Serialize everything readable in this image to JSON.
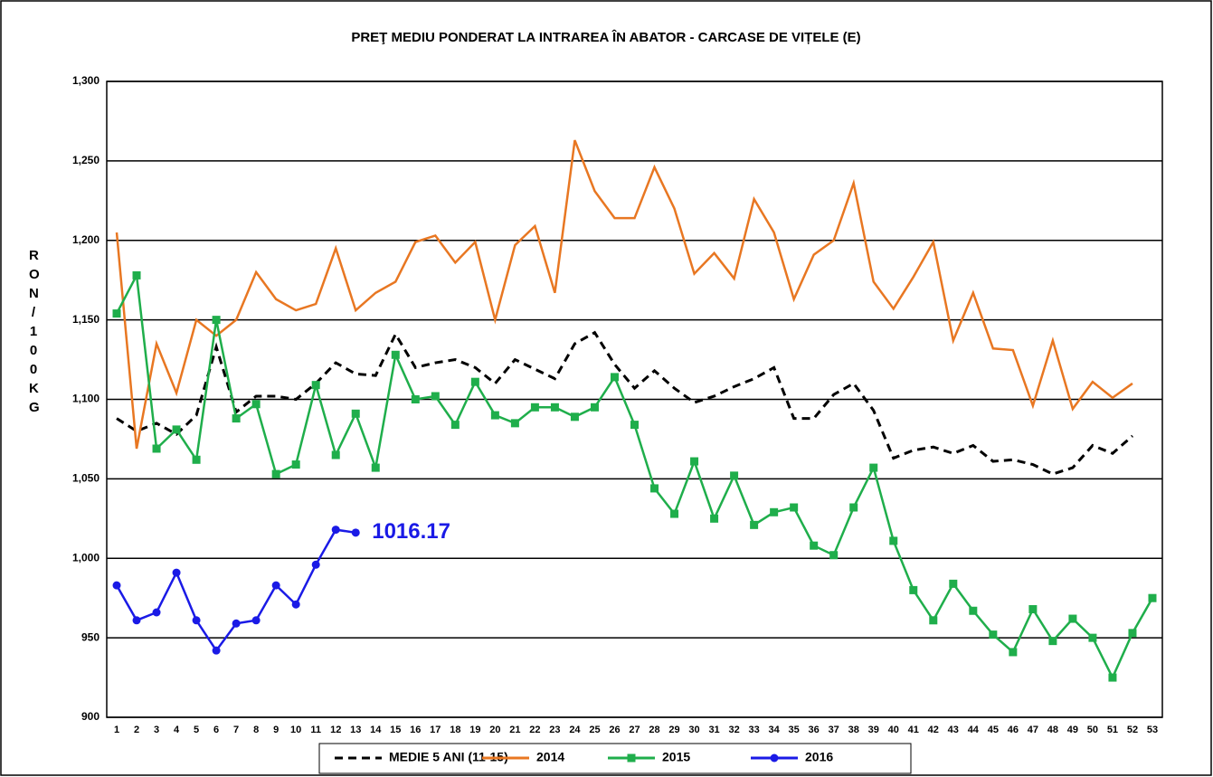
{
  "chart_data": {
    "type": "line",
    "title": "PREŢ MEDIU PONDERAT LA INTRAREA ÎN ABATOR - CARCASE DE VIȚELE (E)",
    "y_label": "RON / 100 KG",
    "categories": [
      "1",
      "2",
      "3",
      "4",
      "5",
      "6",
      "7",
      "8",
      "9",
      "10",
      "11",
      "12",
      "13",
      "14",
      "15",
      "16",
      "17",
      "18",
      "19",
      "20",
      "21",
      "22",
      "23",
      "24",
      "25",
      "26",
      "27",
      "28",
      "29",
      "30",
      "31",
      "32",
      "33",
      "34",
      "35",
      "36",
      "37",
      "38",
      "39",
      "40",
      "41",
      "42",
      "43",
      "44",
      "45",
      "46",
      "47",
      "48",
      "49",
      "50",
      "51",
      "52",
      "53"
    ],
    "ylim": [
      900,
      1300
    ],
    "yticks": [
      900,
      950,
      {
        "value": 1000,
        "label": "1,000"
      },
      {
        "value": 1050,
        "label": "1,050"
      },
      {
        "value": 1100,
        "label": "1,100"
      },
      {
        "value": 1150,
        "label": "1,150"
      },
      {
        "value": 1200,
        "label": "1,200"
      },
      {
        "value": 1250,
        "label": "1,250"
      },
      {
        "value": 1300,
        "label": "1,300"
      }
    ],
    "grid": true,
    "legend": "bottom",
    "series": [
      {
        "name": "MEDIE 5 ANI (11-15)",
        "color": "#000000",
        "dashed": true,
        "marker": null,
        "values": [
          1088,
          1080,
          1085,
          1078,
          1090,
          1133,
          1092,
          1102,
          1102,
          1100,
          1110,
          1123,
          1116,
          1115,
          1141,
          1120,
          1123,
          1125,
          1120,
          1110,
          1125,
          1119,
          1113,
          1135,
          1142,
          1122,
          1107,
          1118,
          1107,
          1098,
          1102,
          1108,
          1113,
          1120,
          1088,
          1088,
          1103,
          1110,
          1093,
          1063,
          1068,
          1070,
          1066,
          1071,
          1061,
          1062,
          1059,
          1053,
          1057,
          1071,
          1066,
          1077,
          null
        ]
      },
      {
        "name": "2014",
        "color": "#e87722",
        "dashed": false,
        "marker": null,
        "values": [
          1205,
          1069,
          1135,
          1104,
          1150,
          1140,
          1150,
          1180,
          1163,
          1156,
          1160,
          1195,
          1156,
          1167,
          1174,
          1199,
          1203,
          1186,
          1199,
          1150,
          1197,
          1209,
          1167,
          1263,
          1231,
          1214,
          1214,
          1246,
          1220,
          1179,
          1192,
          1176,
          1226,
          1205,
          1163,
          1191,
          1200,
          1236,
          1174,
          1157,
          1177,
          1199,
          1137,
          1167,
          1132,
          1131,
          1096,
          1137,
          1094,
          1111,
          1101,
          1110,
          null
        ]
      },
      {
        "name": "2015",
        "color": "#1fae4b",
        "dashed": false,
        "marker": "square",
        "values": [
          1154,
          1178,
          1069,
          1081,
          1062,
          1150,
          1088,
          1097,
          1053,
          1059,
          1109,
          1065,
          1091,
          1057,
          1128,
          1100,
          1102,
          1084,
          1111,
          1090,
          1085,
          1095,
          1095,
          1089,
          1095,
          1114,
          1084,
          1044,
          1028,
          1061,
          1025,
          1052,
          1021,
          1029,
          1032,
          1008,
          1002,
          1032,
          1057,
          1011,
          980,
          961,
          984,
          967,
          952,
          941,
          968,
          948,
          962,
          950,
          925,
          953,
          975
        ]
      },
      {
        "name": "2016",
        "color": "#1a1ae6",
        "dashed": false,
        "marker": "circle",
        "values": [
          983,
          961,
          966,
          991,
          961,
          942,
          959,
          961,
          983,
          971,
          996,
          1018,
          1016.17,
          null,
          null,
          null,
          null,
          null,
          null,
          null,
          null,
          null,
          null,
          null,
          null,
          null,
          null,
          null,
          null,
          null,
          null,
          null,
          null,
          null,
          null,
          null,
          null,
          null,
          null,
          null,
          null,
          null,
          null,
          null,
          null,
          null,
          null,
          null,
          null,
          null,
          null,
          null,
          null
        ]
      }
    ]
  }
}
